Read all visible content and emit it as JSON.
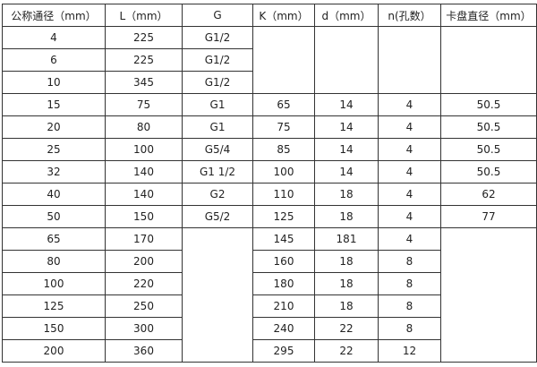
{
  "headers": [
    "公称通径（mm）",
    "L（mm）",
    "G",
    "K（mm）",
    "d（mm）",
    "n(孔数）",
    "卡盘直径（mm）"
  ],
  "rows_small": [
    [
      "4",
      "225",
      "G1/2"
    ],
    [
      "6",
      "225",
      "G1/2"
    ],
    [
      "10",
      "345",
      "G1/2"
    ]
  ],
  "rows_mid": [
    [
      "15",
      "75",
      "G1",
      "65",
      "14",
      "4",
      "50.5"
    ],
    [
      "20",
      "80",
      "G1",
      "75",
      "14",
      "4",
      "50.5"
    ],
    [
      "25",
      "100",
      "G5/4",
      "85",
      "14",
      "4",
      "50.5"
    ],
    [
      "32",
      "140",
      "G1  1/2",
      "100",
      "14",
      "4",
      "50.5"
    ],
    [
      "40",
      "140",
      "G2",
      "110",
      "18",
      "4",
      "62"
    ],
    [
      "50",
      "150",
      "G5/2",
      "125",
      "18",
      "4",
      "77"
    ]
  ],
  "rows_large": [
    [
      "65",
      "170",
      "145",
      "181",
      "4"
    ],
    [
      "80",
      "200",
      "160",
      "18",
      "8"
    ],
    [
      "100",
      "220",
      "180",
      "18",
      "8"
    ],
    [
      "125",
      "250",
      "210",
      "18",
      "8"
    ],
    [
      "150",
      "300",
      "240",
      "22",
      "8"
    ],
    [
      "200",
      "360",
      "295",
      "22",
      "12"
    ]
  ]
}
